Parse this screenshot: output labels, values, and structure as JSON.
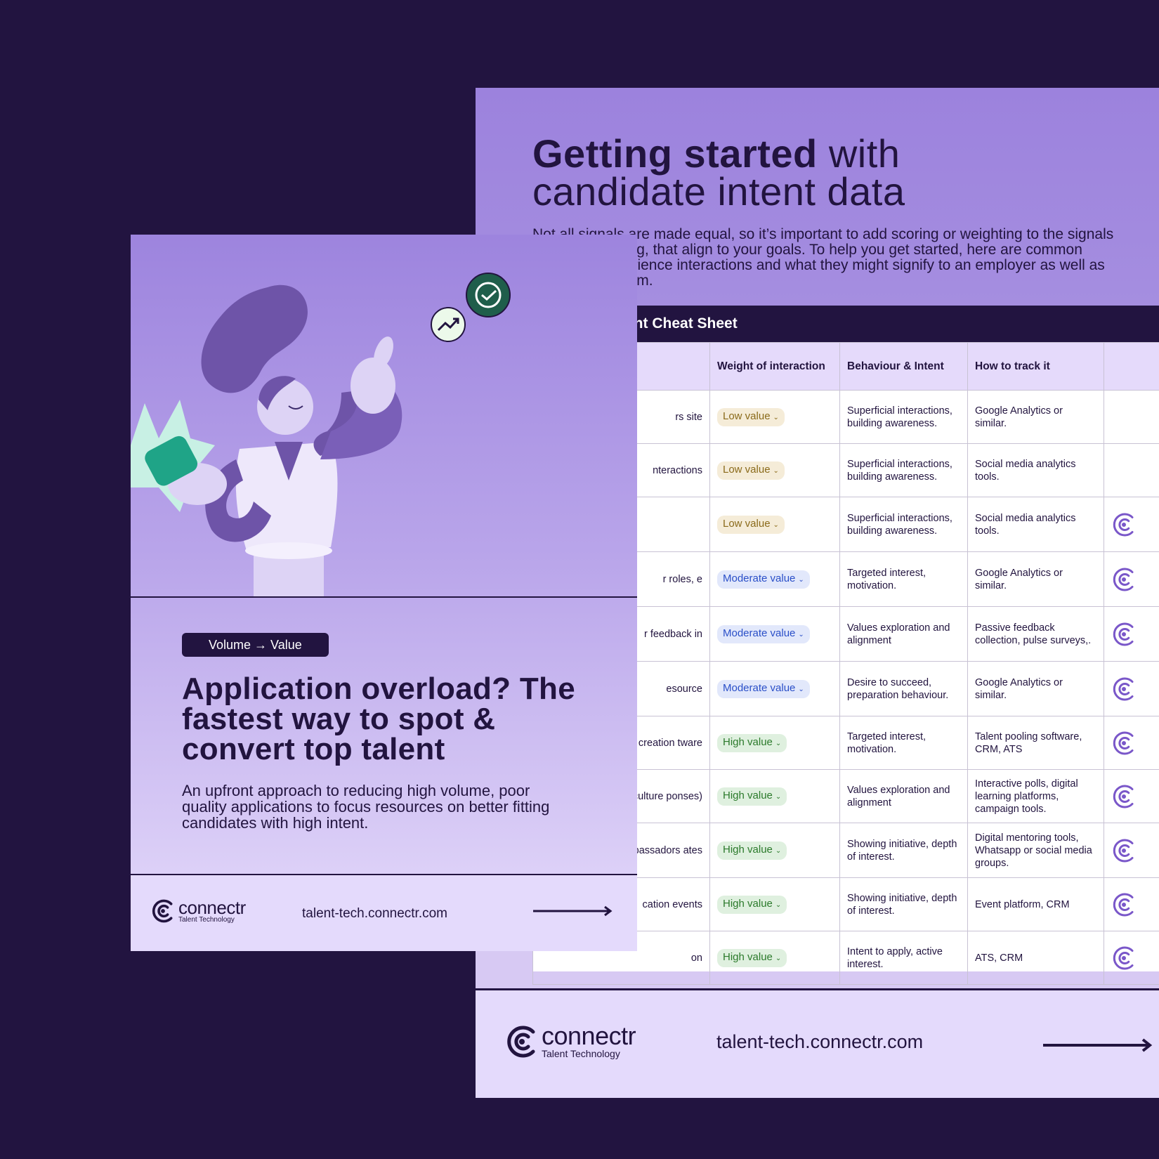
{
  "back_doc": {
    "title_bold": "Getting started",
    "title_rest": " with",
    "title_line2": "candidate intent data",
    "intro": "Not all signals are made equal, so it’s important to add scoring or weighting to the signals you are receiving, that align to your goals. To help you get started, here are common candidate experience interactions and what they might signify to an employer as well as how to track them.",
    "cheat_title": "Candidate Intent Cheat Sheet",
    "table": {
      "headers": [
        "",
        "Weight of interaction",
        "Behaviour & Intent",
        "How to track it",
        ""
      ],
      "rows": [
        {
          "interaction": "rs site",
          "weight": "Low value",
          "level": "low",
          "behaviour": "Superficial interactions, building awareness.",
          "track": "Google Analytics or similar.",
          "logo": false
        },
        {
          "interaction": "nteractions",
          "weight": "Low value",
          "level": "low",
          "behaviour": "Superficial interactions, building awareness.",
          "track": "Social media analytics tools.",
          "logo": false
        },
        {
          "interaction": "",
          "weight": "Low value",
          "level": "low",
          "behaviour": "Superficial interactions, building awareness.",
          "track": "Social media analytics tools.",
          "logo": true
        },
        {
          "interaction": "r roles, e",
          "weight": "Moderate value",
          "level": "moderate",
          "behaviour": "Targeted interest, motivation.",
          "track": "Google Analytics or similar.",
          "logo": true
        },
        {
          "interaction": "r feedback in",
          "weight": "Moderate value",
          "level": "moderate",
          "behaviour": "Values exploration and alignment",
          "track": "Passive feedback collection, pulse surveys,.",
          "logo": true
        },
        {
          "interaction": "esource",
          "weight": "Moderate value",
          "level": "moderate",
          "behaviour": "Desire to succeed, preparation behaviour.",
          "track": "Google Analytics or similar.",
          "logo": true
        },
        {
          "interaction": "unt creation tware",
          "weight": "High value",
          "level": "high",
          "behaviour": "Targeted interest, motivation.",
          "track": "Talent pooling software, CRM, ATS",
          "logo": true
        },
        {
          "interaction": "n with culture ponses)",
          "weight": "High value",
          "level": "high",
          "behaviour": "Values exploration and alignment",
          "track": "Interactive polls, digital learning platforms, campaign tools.",
          "logo": true
        },
        {
          "interaction": "ambassadors ates",
          "weight": "High value",
          "level": "high",
          "behaviour": "Showing initiative, depth of interest.",
          "track": "Digital mentoring tools, Whatsapp or social media groups.",
          "logo": true
        },
        {
          "interaction": "cation events",
          "weight": "High value",
          "level": "high",
          "behaviour": "Showing initiative, depth of interest.",
          "track": "Event platform, CRM",
          "logo": true
        },
        {
          "interaction": "on",
          "weight": "High value",
          "level": "high",
          "behaviour": "Intent to apply, active interest.",
          "track": "ATS, CRM",
          "logo": true
        }
      ]
    },
    "footer": {
      "brand": "connectr",
      "tagline": "Talent Technology",
      "url": "talent-tech.connectr.com"
    }
  },
  "front_doc": {
    "badge": "Volume → Value",
    "title": "Application overload? The fastest way to spot & convert top talent",
    "subtitle": "An upfront approach to reducing high volume, poor quality applications to focus resources on better fitting candidates with high intent.",
    "footer": {
      "brand": "connectr",
      "tagline": "Talent Technology",
      "url": "talent-tech.connectr.com"
    }
  },
  "colors": {
    "background": "#221440",
    "lavender": "#9c82dd",
    "footer_bg": "#e4dafc",
    "low": "#8a6a1a",
    "moderate": "#2a4fc8",
    "high": "#2b7a2b",
    "accent_logo": "#7a57c9"
  },
  "icons": {
    "connectr_logo": "connectr-logo-icon",
    "arrow": "arrow-right-icon",
    "chevron": "chevron-down-icon",
    "check": "check-circle-icon",
    "trend": "trend-up-icon"
  }
}
